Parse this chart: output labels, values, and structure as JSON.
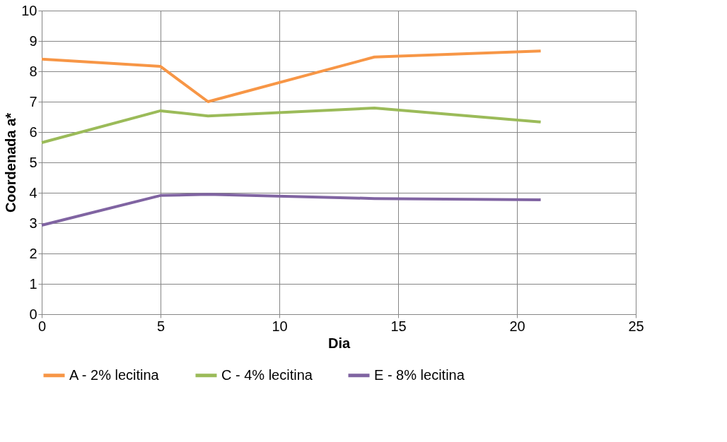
{
  "chart_data": {
    "type": "line",
    "xlabel": "Dia",
    "ylabel": "Coordenada a*",
    "x": [
      0,
      5,
      7,
      14,
      21
    ],
    "series": [
      {
        "name": "A - 2% lecitina",
        "color": "#f79646",
        "values": [
          8.4,
          8.16,
          7.0,
          8.47,
          8.67
        ]
      },
      {
        "name": "C - 4% lecitina",
        "color": "#9bbb59",
        "values": [
          5.65,
          6.7,
          6.53,
          6.79,
          6.33
        ]
      },
      {
        "name": "E - 8% lecitina",
        "color": "#8064a2",
        "values": [
          2.93,
          3.91,
          3.95,
          3.81,
          3.77
        ]
      }
    ],
    "xlim": [
      0,
      25
    ],
    "xticks": [
      0,
      5,
      10,
      15,
      20,
      25
    ],
    "ylim": [
      0,
      10
    ],
    "yticks": [
      0,
      1,
      2,
      3,
      4,
      5,
      6,
      7,
      8,
      9,
      10
    ],
    "grid": true,
    "legend": "bottom",
    "marker": "none",
    "line_style": "solid"
  }
}
